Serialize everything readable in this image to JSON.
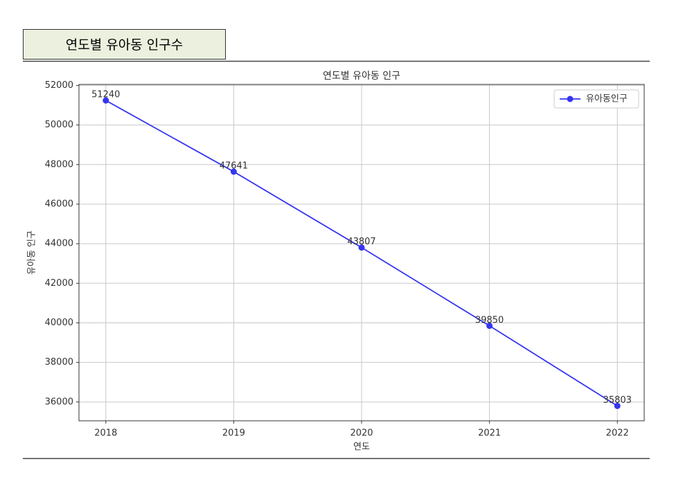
{
  "header": {
    "title": "연도별 유아동 인구수"
  },
  "chart_data": {
    "type": "line",
    "title": "연도별 유아동 인구",
    "x_label": "연도",
    "y_label": "유아동 인구",
    "x": [
      2018,
      2019,
      2020,
      2021,
      2022
    ],
    "series": [
      {
        "name": "유아동인구",
        "color": "#3535f0",
        "values": [
          51240,
          47641,
          43807,
          39850,
          35803
        ]
      }
    ],
    "xlim": [
      2017.79,
      2022.21
    ],
    "xticks": [
      2018,
      2019,
      2020,
      2021,
      2022
    ],
    "ylim": [
      35050,
      52050
    ],
    "yticks": [
      36000,
      38000,
      40000,
      42000,
      44000,
      46000,
      48000,
      50000,
      52000
    ],
    "grid": true,
    "legend": "upper right",
    "data_labels": true
  }
}
